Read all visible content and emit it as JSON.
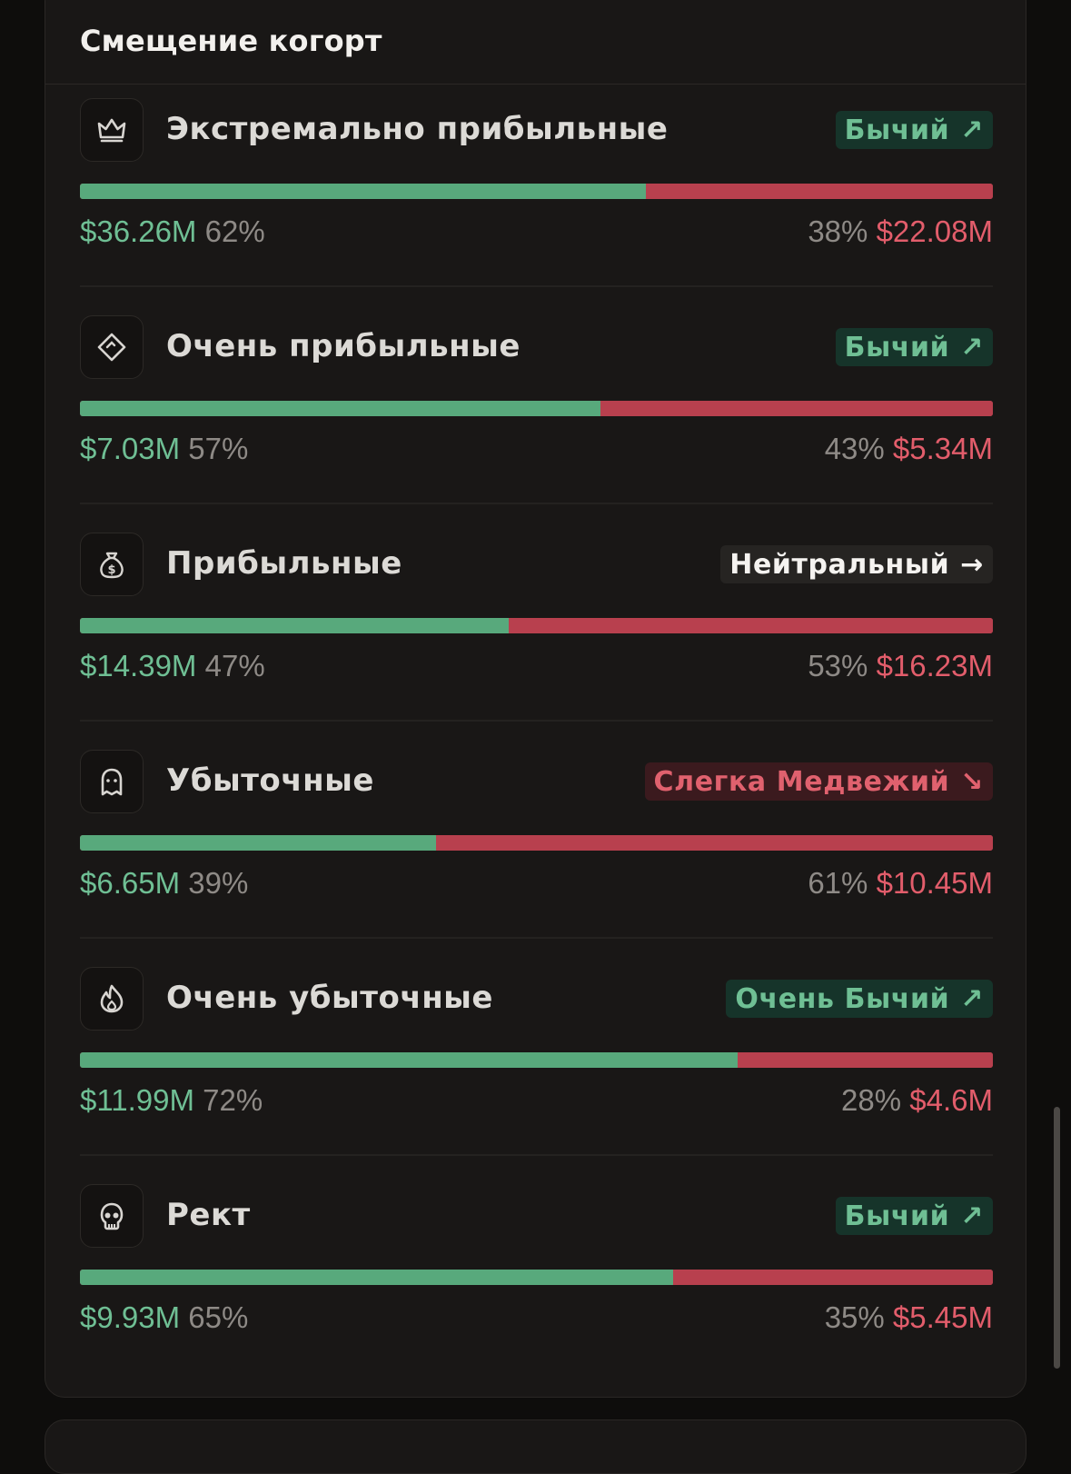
{
  "card": {
    "title": "Смещение когорт"
  },
  "colors": {
    "bull": "#6fbf94",
    "bear": "#e25d6b",
    "neutral": "#f5f3f0"
  },
  "rows": [
    {
      "icon": "crown-icon",
      "name": "Экстремально прибыльные",
      "badge": {
        "label": "Бычий",
        "arrow": "↗",
        "tone": "bull"
      },
      "green_fraction": 0.62,
      "left_value": "$36.26M",
      "left_pct": "62%",
      "right_pct": "38%",
      "right_value": "$22.08M"
    },
    {
      "icon": "diamond-icon",
      "name": "Очень прибыльные",
      "badge": {
        "label": "Бычий",
        "arrow": "↗",
        "tone": "bull"
      },
      "green_fraction": 0.57,
      "left_value": "$7.03M",
      "left_pct": "57%",
      "right_pct": "43%",
      "right_value": "$5.34M"
    },
    {
      "icon": "money-bag-icon",
      "name": "Прибыльные",
      "badge": {
        "label": "Нейтральный",
        "arrow": "→",
        "tone": "neutral"
      },
      "green_fraction": 0.47,
      "left_value": "$14.39M",
      "left_pct": "47%",
      "right_pct": "53%",
      "right_value": "$16.23M"
    },
    {
      "icon": "ghost-icon",
      "name": "Убыточные",
      "badge": {
        "label": "Слегка Медвежий",
        "arrow": "↘",
        "tone": "bear"
      },
      "green_fraction": 0.39,
      "left_value": "$6.65M",
      "left_pct": "39%",
      "right_pct": "61%",
      "right_value": "$10.45M"
    },
    {
      "icon": "flame-icon",
      "name": "Очень убыточные",
      "badge": {
        "label": "Очень Бычий",
        "arrow": "↗",
        "tone": "bull"
      },
      "green_fraction": 0.72,
      "left_value": "$11.99M",
      "left_pct": "72%",
      "right_pct": "28%",
      "right_value": "$4.6M"
    },
    {
      "icon": "skull-icon",
      "name": "Рект",
      "badge": {
        "label": "Бычий",
        "arrow": "↗",
        "tone": "bull"
      },
      "green_fraction": 0.65,
      "left_value": "$9.93M",
      "left_pct": "65%",
      "right_pct": "35%",
      "right_value": "$5.45M"
    }
  ]
}
